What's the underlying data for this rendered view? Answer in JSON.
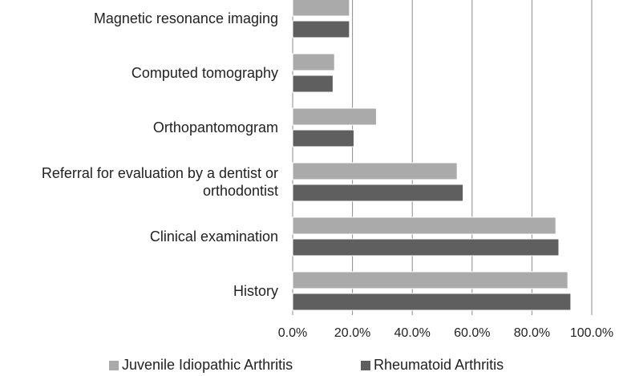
{
  "chart_data": {
    "type": "bar",
    "orientation": "horizontal",
    "categories": [
      "Magnetic resonance imaging",
      "Computed tomography",
      "Orthopantomogram",
      "Referral for evaluation by a dentist or orthodontist",
      "Clinical examination",
      "History"
    ],
    "series": [
      {
        "name": "Juvenile Idiopathic Arthritis",
        "color": "#aaaaaa",
        "values": [
          19,
          14,
          28,
          55,
          88,
          92
        ]
      },
      {
        "name": "Rheumatoid Arthritis",
        "color": "#5f5f5f",
        "values": [
          19,
          13.5,
          20.5,
          57,
          89,
          93
        ]
      }
    ],
    "xlim": [
      0,
      100
    ],
    "xticks": [
      {
        "value": 0,
        "label": "0.0%"
      },
      {
        "value": 20,
        "label": "20.0%"
      },
      {
        "value": 40,
        "label": "40.0%"
      },
      {
        "value": 60,
        "label": "60.0%"
      },
      {
        "value": 80,
        "label": "80.0%"
      },
      {
        "value": 100,
        "label": "100.0%"
      }
    ],
    "grid": true,
    "legend": "bottom"
  }
}
